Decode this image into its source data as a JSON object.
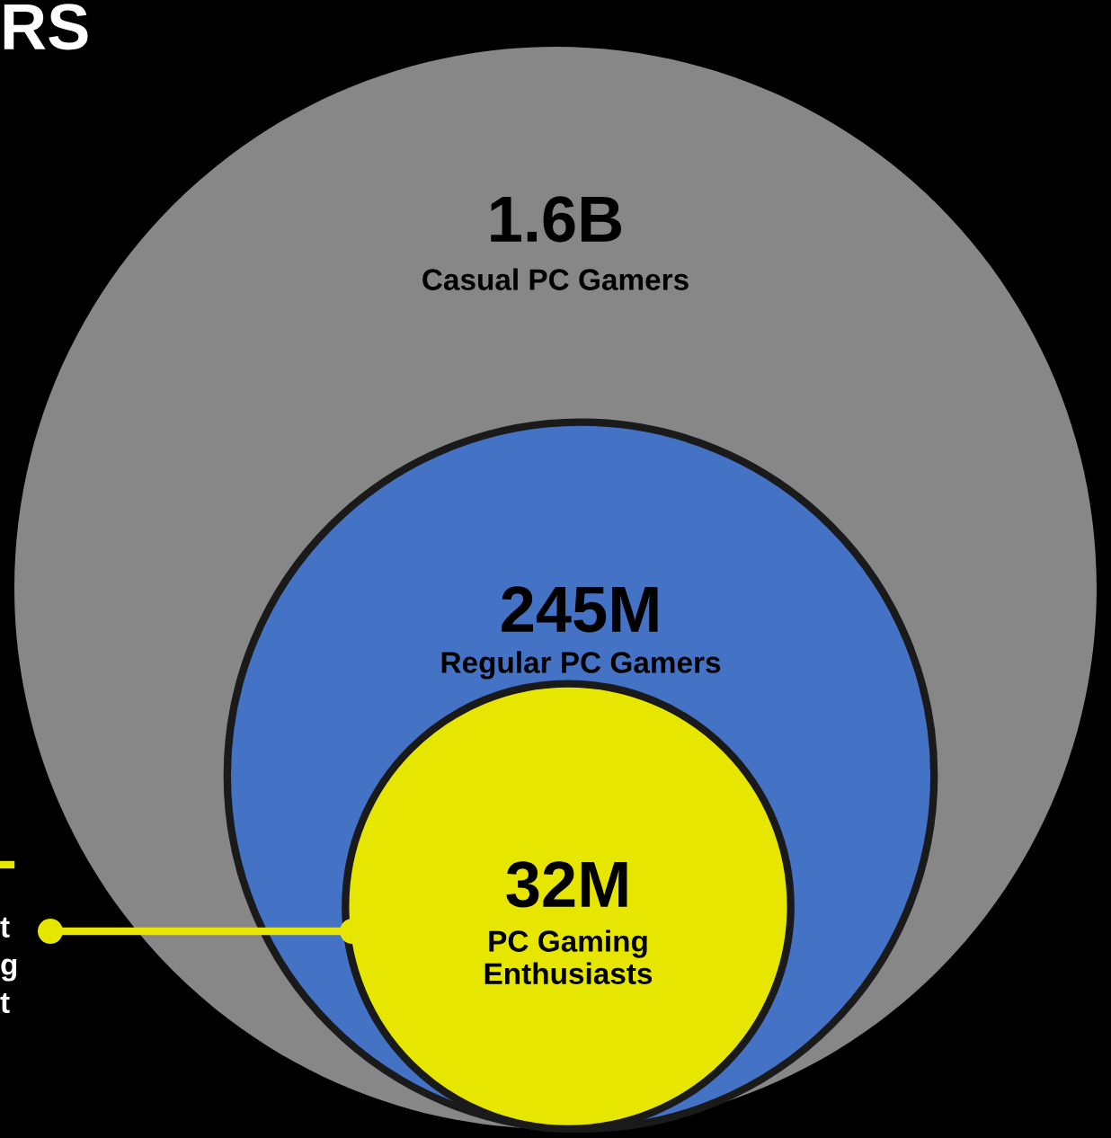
{
  "chart_data": {
    "type": "other",
    "title": "RS",
    "categories": [
      "Casual PC Gamers",
      "Regular PC Gamers",
      "PC Gaming\nEnthusiasts"
    ],
    "values": [
      1600000000,
      245000000,
      32000000
    ],
    "value_labels": [
      "1.6B",
      "245M",
      "32M"
    ],
    "colors": [
      "#878787",
      "#4472c4",
      "#e6e600"
    ],
    "annotations": [
      "t\ng\nt"
    ]
  }
}
